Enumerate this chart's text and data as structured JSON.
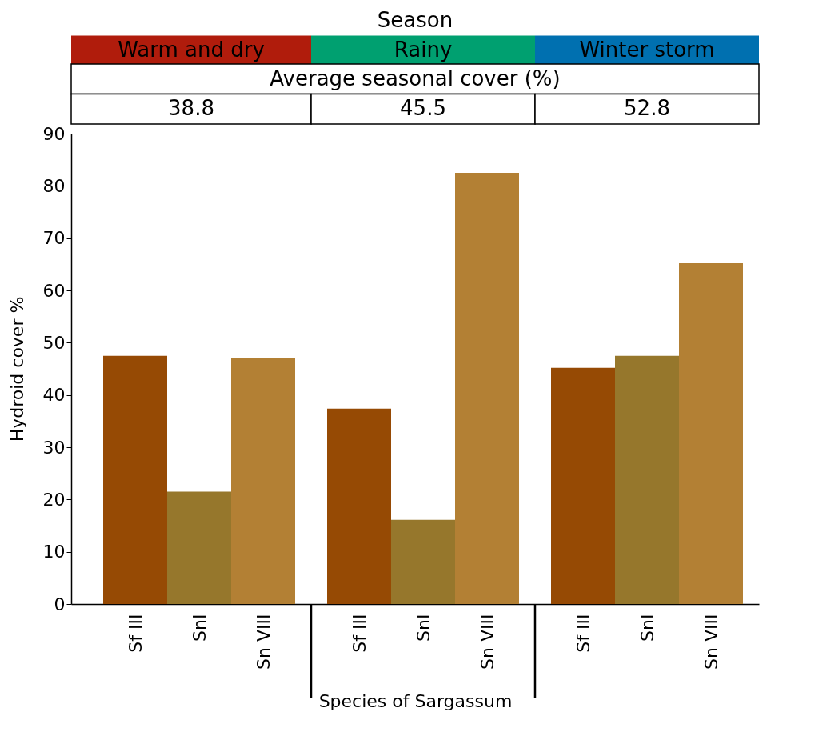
{
  "chart_data": {
    "type": "bar",
    "categories": [
      "Sf III",
      "SnI",
      "Sn VIII",
      "Sf III",
      "SnI",
      "Sn VIII",
      "Sf III",
      "SnI",
      "Sn VIII"
    ],
    "values": [
      47.5,
      21.5,
      47.0,
      37.4,
      16.1,
      82.5,
      45.2,
      47.5,
      65.2
    ],
    "colors": [
      "#964a04",
      "#96772c",
      "#b38034",
      "#964a04",
      "#96772c",
      "#b38034",
      "#964a04",
      "#96772c",
      "#b38034"
    ],
    "xlabel": "Species of Sargassum",
    "ylabel": "Hydroid cover %",
    "ylim": [
      0,
      90
    ],
    "yticks": [
      0,
      10,
      20,
      30,
      40,
      50,
      60,
      70,
      80,
      90
    ],
    "grid": false,
    "annotations": [
      "Season",
      "Warm and dry",
      "Rainy",
      "Winter storm",
      "Average seasonal cover (%)",
      "38.8",
      "45.5",
      "52.8"
    ]
  }
}
